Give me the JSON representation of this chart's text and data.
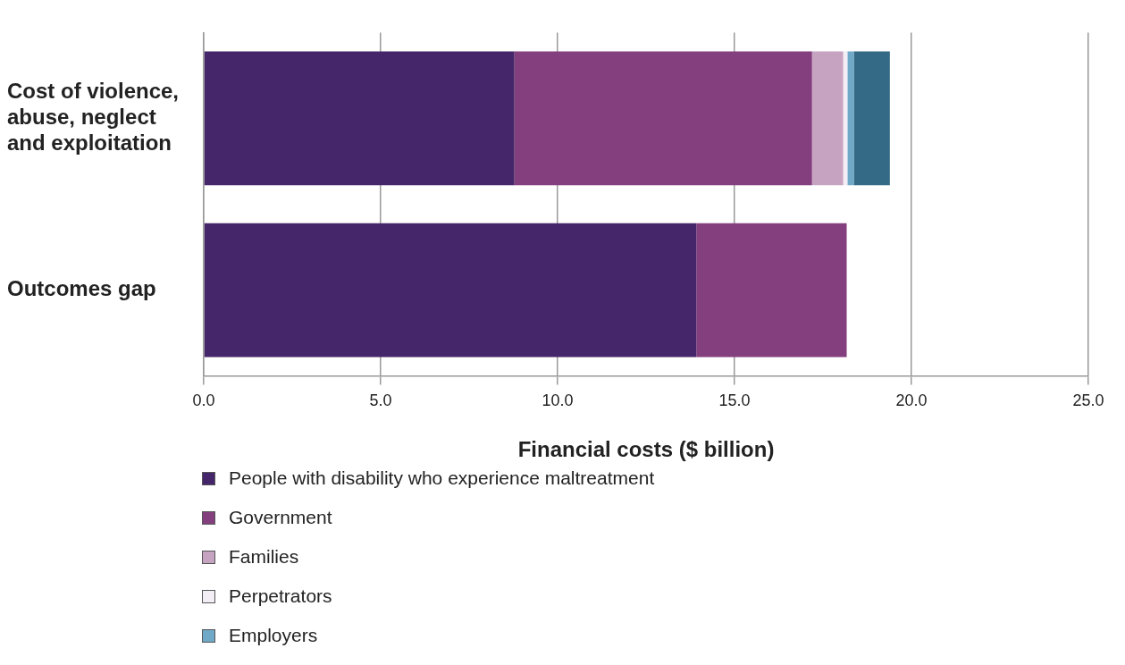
{
  "chart_data": {
    "type": "bar",
    "orientation": "horizontal",
    "stacked": true,
    "categories": [
      "Cost of violence, abuse, neglect and exploitation",
      "Outcomes gap"
    ],
    "series": [
      {
        "name": "People with disability who experience maltreatment",
        "color": "#46266a",
        "values": [
          8.78,
          13.92
        ]
      },
      {
        "name": "Government",
        "color": "#843f7e",
        "values": [
          8.41,
          4.25
        ]
      },
      {
        "name": "Families",
        "color": "#c6a3c1",
        "values": [
          0.88,
          null
        ]
      },
      {
        "name": "Perpetrators",
        "color": "#f3eef5",
        "values": [
          0.12,
          null
        ]
      },
      {
        "name": "Employers",
        "color": "#6fa9c7",
        "values": [
          0.18,
          null
        ]
      },
      {
        "color": "#346a86",
        "values": [
          1.02,
          null
        ]
      }
    ],
    "xlim": [
      0,
      25
    ],
    "xticks": [
      {
        "value": 0,
        "label": "0.0"
      },
      {
        "value": 5,
        "label": "5.0"
      },
      {
        "value": 10,
        "label": "10.0"
      },
      {
        "value": 15,
        "label": "15.0"
      },
      {
        "value": 20,
        "label": "20.0"
      },
      {
        "value": 25,
        "label": "25.0"
      }
    ],
    "xlabel": "Financial costs ($ billion)",
    "grid": "x",
    "legend": "bottom"
  }
}
